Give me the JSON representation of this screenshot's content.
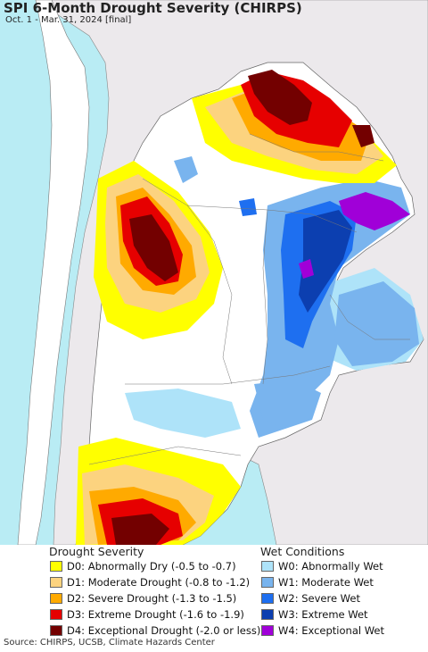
{
  "header": {
    "title": "SPI 6-Month Drought Severity (CHIRPS)",
    "subtitle": "Oct. 1 - Mar. 31, 2024 [final]"
  },
  "map": {
    "ocean_color": "#b9ecf4",
    "neighbor_land_color": "#ece9ec",
    "neutral_color": "#ffffff"
  },
  "legend": {
    "drought_title": "Drought Severity",
    "wet_title": "Wet Conditions",
    "drought": [
      {
        "label": "D0: Abnormally Dry (-0.5 to -0.7)",
        "color": "#ffff00"
      },
      {
        "label": "D1: Moderate Drought (-0.8 to -1.2)",
        "color": "#fcd37f"
      },
      {
        "label": "D2: Severe Drought (-1.3 to -1.5)",
        "color": "#ffaa00"
      },
      {
        "label": "D3: Extreme Drought (-1.6 to -1.9)",
        "color": "#e60000"
      },
      {
        "label": "D4: Exceptional Drought (-2.0 or less)",
        "color": "#730000"
      }
    ],
    "wet": [
      {
        "label": "W0: Abnormally Wet",
        "color": "#aee3f9"
      },
      {
        "label": "W1: Moderate Wet",
        "color": "#79b4ee"
      },
      {
        "label": "W2: Severe Wet",
        "color": "#1e6ff0"
      },
      {
        "label": "W3: Extreme Wet",
        "color": "#0c3fb0"
      },
      {
        "label": "W4: Exceptional Wet",
        "color": "#a000d8"
      }
    ]
  },
  "footer": {
    "source": "Source: CHIRPS, UCSB, Climate Hazards Center"
  }
}
